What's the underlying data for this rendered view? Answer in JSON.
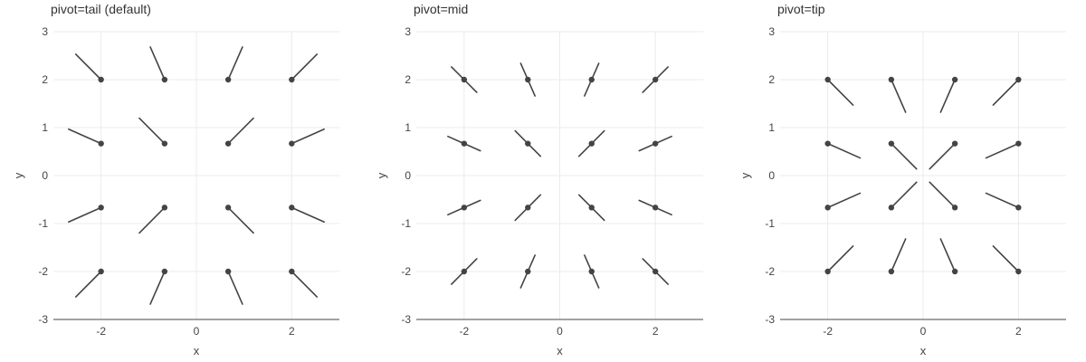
{
  "chart_data": [
    {
      "type": "scatter",
      "subtype": "needle-field",
      "title": "pivot=tail (default)",
      "pivot": "tail",
      "xlabel": "x",
      "ylabel": "y",
      "xlim": [
        -3,
        3
      ],
      "ylim": [
        -3,
        3
      ],
      "xticks": [
        -2,
        0,
        2
      ],
      "yticks": [
        -3,
        -2,
        -1,
        0,
        1,
        2,
        3
      ],
      "grid": true,
      "color": "#444444",
      "points": [
        {
          "x": -2,
          "y": 2,
          "u": -0.53,
          "v": 0.53
        },
        {
          "x": -0.667,
          "y": 2,
          "u": -0.3,
          "v": 0.68
        },
        {
          "x": 0.667,
          "y": 2,
          "u": 0.3,
          "v": 0.68
        },
        {
          "x": 2,
          "y": 2,
          "u": 0.53,
          "v": 0.53
        },
        {
          "x": -2,
          "y": 0.667,
          "u": -0.68,
          "v": 0.3
        },
        {
          "x": -0.667,
          "y": 0.667,
          "u": -0.53,
          "v": 0.53
        },
        {
          "x": 0.667,
          "y": 0.667,
          "u": 0.53,
          "v": 0.53
        },
        {
          "x": 2,
          "y": 0.667,
          "u": 0.68,
          "v": 0.3
        },
        {
          "x": -2,
          "y": -0.667,
          "u": -0.68,
          "v": -0.3
        },
        {
          "x": -0.667,
          "y": -0.667,
          "u": -0.53,
          "v": -0.53
        },
        {
          "x": 0.667,
          "y": -0.667,
          "u": 0.53,
          "v": -0.53
        },
        {
          "x": 2,
          "y": -0.667,
          "u": 0.68,
          "v": -0.3
        },
        {
          "x": -2,
          "y": -2,
          "u": -0.53,
          "v": -0.53
        },
        {
          "x": -0.667,
          "y": -2,
          "u": -0.3,
          "v": -0.68
        },
        {
          "x": 0.667,
          "y": -2,
          "u": 0.3,
          "v": -0.68
        },
        {
          "x": 2,
          "y": -2,
          "u": 0.53,
          "v": -0.53
        }
      ]
    },
    {
      "type": "scatter",
      "subtype": "needle-field",
      "title": "pivot=mid",
      "pivot": "mid",
      "xlabel": "x",
      "ylabel": "y",
      "xlim": [
        -3,
        3
      ],
      "ylim": [
        -3,
        3
      ],
      "xticks": [
        -2,
        0,
        2
      ],
      "yticks": [
        -3,
        -2,
        -1,
        0,
        1,
        2,
        3
      ],
      "grid": true,
      "color": "#444444",
      "points": [
        {
          "x": -2,
          "y": 2,
          "u": -0.53,
          "v": 0.53
        },
        {
          "x": -0.667,
          "y": 2,
          "u": -0.3,
          "v": 0.68
        },
        {
          "x": 0.667,
          "y": 2,
          "u": 0.3,
          "v": 0.68
        },
        {
          "x": 2,
          "y": 2,
          "u": 0.53,
          "v": 0.53
        },
        {
          "x": -2,
          "y": 0.667,
          "u": -0.68,
          "v": 0.3
        },
        {
          "x": -0.667,
          "y": 0.667,
          "u": -0.53,
          "v": 0.53
        },
        {
          "x": 0.667,
          "y": 0.667,
          "u": 0.53,
          "v": 0.53
        },
        {
          "x": 2,
          "y": 0.667,
          "u": 0.68,
          "v": 0.3
        },
        {
          "x": -2,
          "y": -0.667,
          "u": -0.68,
          "v": -0.3
        },
        {
          "x": -0.667,
          "y": -0.667,
          "u": -0.53,
          "v": -0.53
        },
        {
          "x": 0.667,
          "y": -0.667,
          "u": 0.53,
          "v": -0.53
        },
        {
          "x": 2,
          "y": -0.667,
          "u": 0.68,
          "v": -0.3
        },
        {
          "x": -2,
          "y": -2,
          "u": -0.53,
          "v": -0.53
        },
        {
          "x": -0.667,
          "y": -2,
          "u": -0.3,
          "v": -0.68
        },
        {
          "x": 0.667,
          "y": -2,
          "u": 0.3,
          "v": -0.68
        },
        {
          "x": 2,
          "y": -2,
          "u": 0.53,
          "v": -0.53
        }
      ]
    },
    {
      "type": "scatter",
      "subtype": "needle-field",
      "title": "pivot=tip",
      "pivot": "tip",
      "xlabel": "x",
      "ylabel": "y",
      "xlim": [
        -3,
        3
      ],
      "ylim": [
        -3,
        3
      ],
      "xticks": [
        -2,
        0,
        2
      ],
      "yticks": [
        -3,
        -2,
        -1,
        0,
        1,
        2,
        3
      ],
      "grid": true,
      "color": "#444444",
      "points": [
        {
          "x": -2,
          "y": 2,
          "u": -0.53,
          "v": 0.53
        },
        {
          "x": -0.667,
          "y": 2,
          "u": -0.3,
          "v": 0.68
        },
        {
          "x": 0.667,
          "y": 2,
          "u": 0.3,
          "v": 0.68
        },
        {
          "x": 2,
          "y": 2,
          "u": 0.53,
          "v": 0.53
        },
        {
          "x": -2,
          "y": 0.667,
          "u": -0.68,
          "v": 0.3
        },
        {
          "x": -0.667,
          "y": 0.667,
          "u": -0.53,
          "v": 0.53
        },
        {
          "x": 0.667,
          "y": 0.667,
          "u": 0.53,
          "v": 0.53
        },
        {
          "x": 2,
          "y": 0.667,
          "u": 0.68,
          "v": 0.3
        },
        {
          "x": -2,
          "y": -0.667,
          "u": -0.68,
          "v": -0.3
        },
        {
          "x": -0.667,
          "y": -0.667,
          "u": -0.53,
          "v": -0.53
        },
        {
          "x": 0.667,
          "y": -0.667,
          "u": 0.53,
          "v": -0.53
        },
        {
          "x": 2,
          "y": -0.667,
          "u": 0.68,
          "v": -0.3
        },
        {
          "x": -2,
          "y": -2,
          "u": -0.53,
          "v": -0.53
        },
        {
          "x": -0.667,
          "y": -2,
          "u": -0.3,
          "v": -0.68
        },
        {
          "x": 0.667,
          "y": -2,
          "u": 0.3,
          "v": -0.68
        },
        {
          "x": 2,
          "y": -2,
          "u": 0.53,
          "v": -0.53
        }
      ]
    }
  ]
}
